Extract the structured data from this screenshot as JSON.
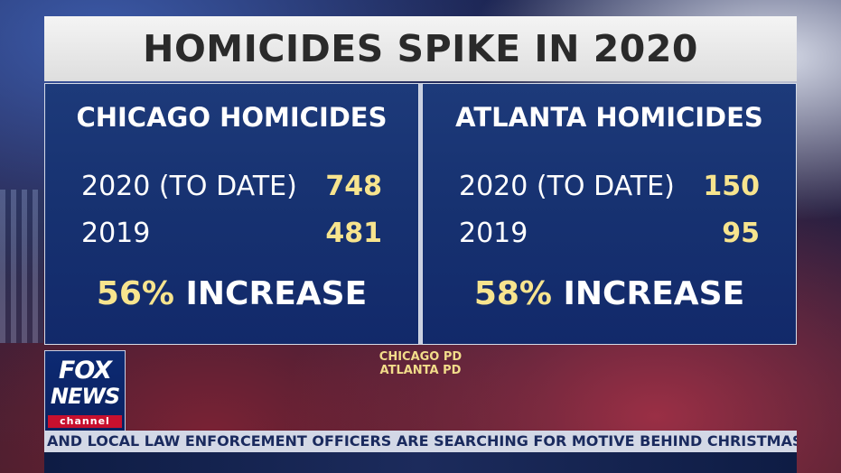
{
  "title": "HOMICIDES SPIKE IN 2020",
  "panels": [
    {
      "heading": "CHICAGO HOMICIDES",
      "rows": [
        {
          "label": "2020 (TO DATE)",
          "value": "748"
        },
        {
          "label": "2019",
          "value": "481"
        }
      ],
      "increase_pct": "56%",
      "increase_label": "INCREASE"
    },
    {
      "heading": "ATLANTA HOMICIDES",
      "rows": [
        {
          "label": "2020 (TO DATE)",
          "value": "150"
        },
        {
          "label": "2019",
          "value": "95"
        }
      ],
      "increase_pct": "58%",
      "increase_label": "INCREASE"
    }
  ],
  "sources": [
    "CHICAGO PD",
    "ATLANTA PD"
  ],
  "logo": {
    "line1": "FOX",
    "line2": "NEWS",
    "line3": "channel"
  },
  "ticker": "AND LOCAL LAW ENFORCEMENT OFFICERS ARE SEARCHING FOR MOTIVE BEHIND CHRISTMAS MORNING RV",
  "colors": {
    "panel_bg": "#173271",
    "highlight": "#f7e48e",
    "title_bg": "#eaeaea",
    "ticker_bg": "#d3d8e6",
    "logo_red": "#c8102e"
  }
}
